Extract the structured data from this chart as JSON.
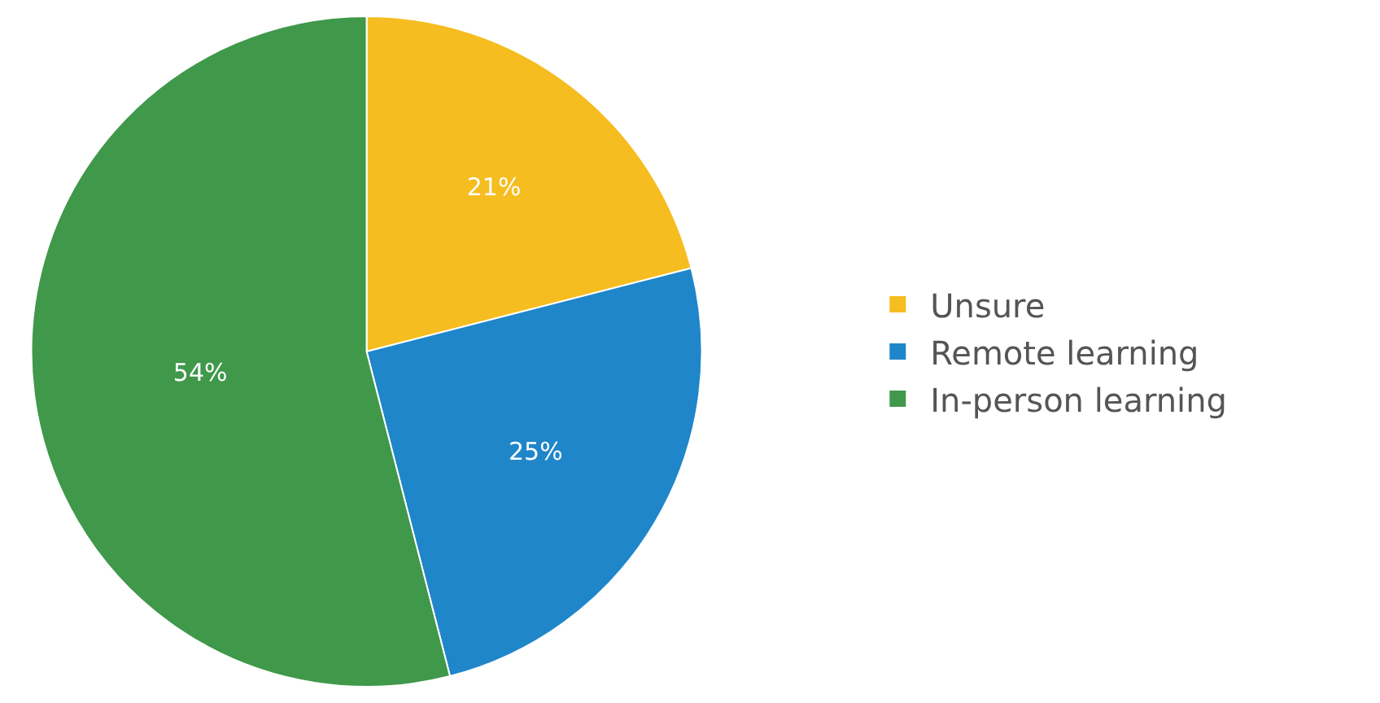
{
  "chart_data": {
    "type": "pie",
    "categories": [
      "Unsure",
      "Remote learning",
      "In-person learning"
    ],
    "values": [
      21,
      25,
      54
    ],
    "value_labels": [
      "21%",
      "25%",
      "54%"
    ],
    "colors": [
      "#f5bd1f",
      "#1f86c9",
      "#40984a"
    ],
    "legend": "right"
  }
}
